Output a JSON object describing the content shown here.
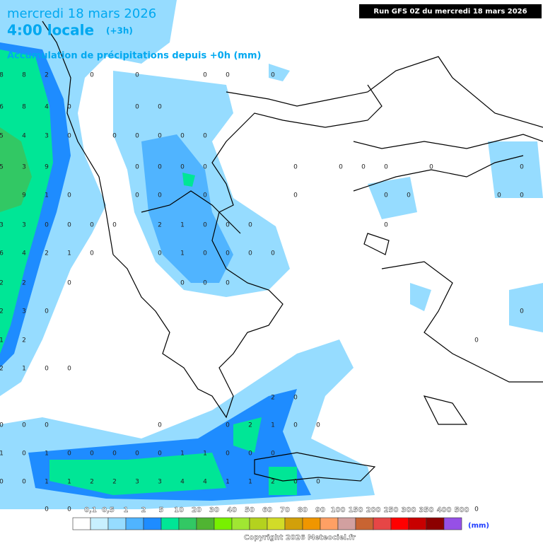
{
  "header": {
    "title": "mercredi 18 mars 2026",
    "time": "4:00 locale",
    "offset": "(+3h)",
    "subtitle": "Accumulation de précipitations depuis +0h (mm)",
    "run": "Run GFS 0Z du mercredi 18 mars 2026"
  },
  "grid_rows": [
    [
      8,
      8,
      2,
      0,
      0,
      0,
      0,
      0
    ],
    [
      6,
      8,
      4,
      0,
      0,
      0
    ],
    [
      5,
      4,
      3,
      0,
      0,
      0,
      0,
      0,
      0
    ],
    [
      5,
      3,
      9,
      0,
      0,
      0,
      0,
      0,
      0,
      0,
      0,
      0,
      0
    ],
    [
      9,
      1,
      0,
      0,
      0,
      0,
      0,
      0,
      0,
      0,
      0
    ],
    [
      3,
      3,
      0,
      0,
      0,
      0,
      2,
      1,
      0,
      0,
      0,
      0
    ],
    [
      6,
      4,
      2,
      1,
      0,
      0,
      1,
      0,
      0,
      0,
      0
    ],
    [
      2,
      2,
      0,
      0,
      0,
      0
    ],
    [
      2,
      3,
      0,
      0
    ],
    [
      1,
      2,
      0
    ],
    [
      2,
      1,
      0,
      0
    ],
    [
      2,
      0
    ],
    [
      0,
      0,
      0,
      0,
      0,
      2,
      1,
      0,
      0
    ],
    [
      1,
      0,
      1,
      0,
      0,
      0,
      0,
      0,
      1,
      1,
      0,
      0,
      0
    ],
    [
      0,
      0,
      1,
      1,
      2,
      2,
      3,
      3,
      4,
      4,
      1,
      1,
      2,
      0,
      0
    ],
    [
      0,
      0,
      0
    ]
  ],
  "legend": {
    "labels": [
      "0,1",
      "0,5",
      "1",
      "2",
      "5",
      "10",
      "20",
      "30",
      "40",
      "50",
      "60",
      "70",
      "80",
      "90",
      "100",
      "150",
      "200",
      "250",
      "300",
      "350",
      "400",
      "500"
    ],
    "colors": [
      "#ffffff",
      "#c8f0ff",
      "#96dcff",
      "#50b4ff",
      "#1e8cff",
      "#00e696",
      "#32c864",
      "#50b432",
      "#78f000",
      "#a0e632",
      "#b4d21e",
      "#d2dc28",
      "#d2a00a",
      "#f09600",
      "#ffa064",
      "#d2a0a0",
      "#c86432",
      "#e64646",
      "#ff0000",
      "#c80000",
      "#8c0000",
      "#9650e6"
    ],
    "unit": "(mm)"
  },
  "footer": {
    "copyright": "Copyright 2026 Meteociel.fr"
  }
}
